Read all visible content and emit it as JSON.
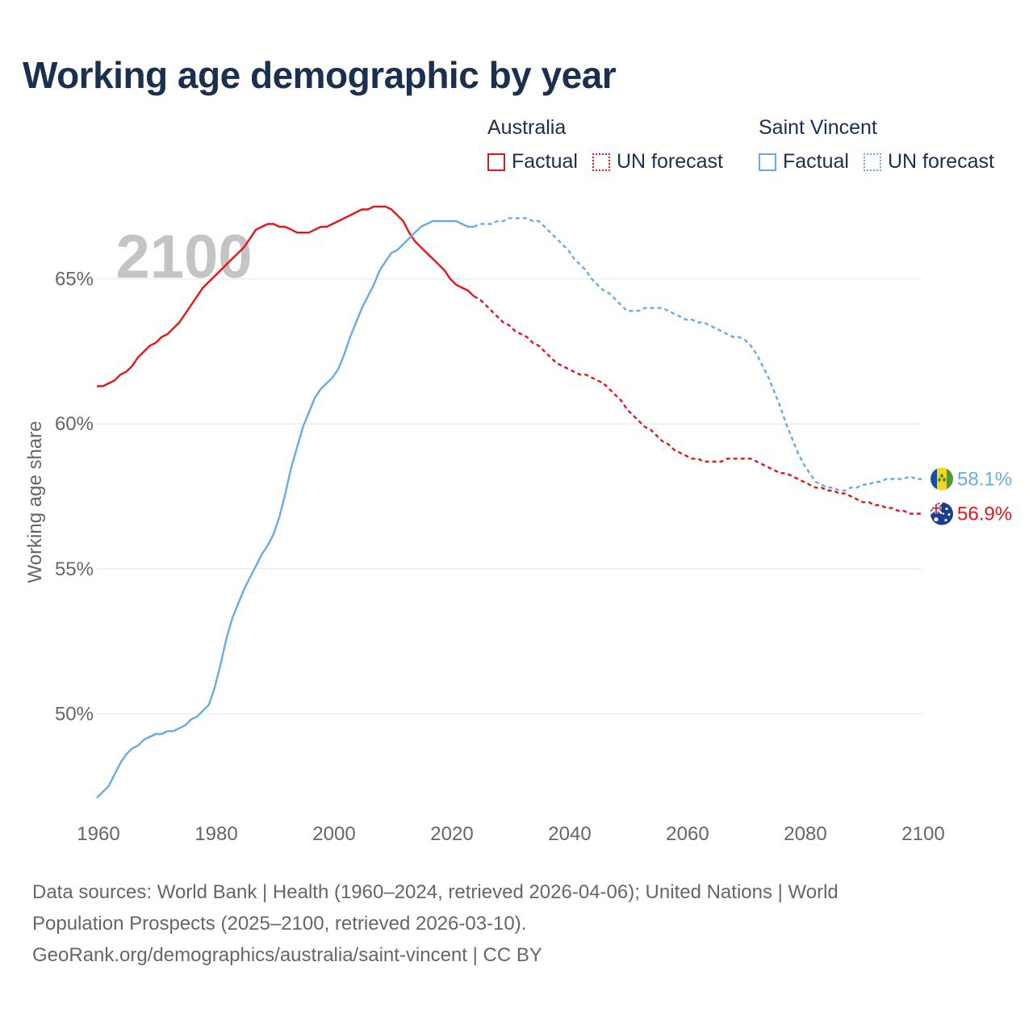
{
  "title": "Working age demographic by year",
  "legend": {
    "groups": [
      {
        "name": "Australia",
        "color": "#e8141c",
        "factual_label": "Factual",
        "forecast_label": "UN forecast"
      },
      {
        "name": "Saint Vincent",
        "color": "#6aaae6",
        "factual_label": "Factual",
        "forecast_label": "UN forecast"
      }
    ]
  },
  "footer": {
    "line1": "Data sources: World Bank | Health (1960–2024, retrieved 2026-04-06); United Nations | World",
    "line2": "Population Prospects (2025–2100, retrieved 2026-03-10).",
    "line3": "GeoRank.org/demographics/australia/saint-vincent | CC BY"
  },
  "chart_data": {
    "type": "line",
    "title": "Working age demographic by year",
    "xlabel": "",
    "ylabel": "Working age share",
    "xlim": [
      1960,
      2100
    ],
    "ylim": [
      46.5,
      68.5
    ],
    "x_ticks": [
      1960,
      1980,
      2000,
      2020,
      2040,
      2060,
      2080,
      2100
    ],
    "y_ticks": [
      50,
      55,
      60,
      65
    ],
    "y_tick_labels": [
      "50%",
      "55%",
      "60%",
      "65%"
    ],
    "year_watermark": "2100",
    "factual_end_year": 2024,
    "series": [
      {
        "name": "Australia",
        "color": "#e8141c",
        "end_label": "56.9%",
        "flag": "australia",
        "points": [
          [
            1960,
            61.3
          ],
          [
            1961,
            61.3
          ],
          [
            1962,
            61.4
          ],
          [
            1963,
            61.5
          ],
          [
            1964,
            61.7
          ],
          [
            1965,
            61.8
          ],
          [
            1966,
            62.0
          ],
          [
            1967,
            62.3
          ],
          [
            1968,
            62.5
          ],
          [
            1969,
            62.7
          ],
          [
            1970,
            62.8
          ],
          [
            1971,
            63.0
          ],
          [
            1972,
            63.1
          ],
          [
            1973,
            63.3
          ],
          [
            1974,
            63.5
          ],
          [
            1975,
            63.8
          ],
          [
            1976,
            64.1
          ],
          [
            1977,
            64.4
          ],
          [
            1978,
            64.7
          ],
          [
            1979,
            64.9
          ],
          [
            1980,
            65.1
          ],
          [
            1981,
            65.3
          ],
          [
            1982,
            65.5
          ],
          [
            1983,
            65.7
          ],
          [
            1984,
            65.9
          ],
          [
            1985,
            66.1
          ],
          [
            1986,
            66.4
          ],
          [
            1987,
            66.7
          ],
          [
            1988,
            66.8
          ],
          [
            1989,
            66.9
          ],
          [
            1990,
            66.9
          ],
          [
            1991,
            66.8
          ],
          [
            1992,
            66.8
          ],
          [
            1993,
            66.7
          ],
          [
            1994,
            66.6
          ],
          [
            1995,
            66.6
          ],
          [
            1996,
            66.6
          ],
          [
            1997,
            66.7
          ],
          [
            1998,
            66.8
          ],
          [
            1999,
            66.8
          ],
          [
            2000,
            66.9
          ],
          [
            2001,
            67.0
          ],
          [
            2002,
            67.1
          ],
          [
            2003,
            67.2
          ],
          [
            2004,
            67.3
          ],
          [
            2005,
            67.4
          ],
          [
            2006,
            67.4
          ],
          [
            2007,
            67.5
          ],
          [
            2008,
            67.5
          ],
          [
            2009,
            67.5
          ],
          [
            2010,
            67.4
          ],
          [
            2011,
            67.2
          ],
          [
            2012,
            67.0
          ],
          [
            2013,
            66.6
          ],
          [
            2014,
            66.3
          ],
          [
            2015,
            66.1
          ],
          [
            2016,
            65.9
          ],
          [
            2017,
            65.7
          ],
          [
            2018,
            65.5
          ],
          [
            2019,
            65.3
          ],
          [
            2020,
            65.0
          ],
          [
            2021,
            64.8
          ],
          [
            2022,
            64.7
          ],
          [
            2023,
            64.6
          ],
          [
            2024,
            64.4
          ],
          [
            2025,
            64.3
          ],
          [
            2026,
            64.1
          ],
          [
            2027,
            63.9
          ],
          [
            2028,
            63.7
          ],
          [
            2029,
            63.5
          ],
          [
            2030,
            63.4
          ],
          [
            2031,
            63.2
          ],
          [
            2032,
            63.1
          ],
          [
            2033,
            63.0
          ],
          [
            2034,
            62.8
          ],
          [
            2035,
            62.7
          ],
          [
            2036,
            62.5
          ],
          [
            2037,
            62.3
          ],
          [
            2038,
            62.1
          ],
          [
            2039,
            62.0
          ],
          [
            2040,
            61.9
          ],
          [
            2041,
            61.8
          ],
          [
            2042,
            61.7
          ],
          [
            2043,
            61.7
          ],
          [
            2044,
            61.6
          ],
          [
            2045,
            61.5
          ],
          [
            2046,
            61.4
          ],
          [
            2047,
            61.2
          ],
          [
            2048,
            61.0
          ],
          [
            2049,
            60.8
          ],
          [
            2050,
            60.5
          ],
          [
            2051,
            60.3
          ],
          [
            2052,
            60.1
          ],
          [
            2053,
            59.9
          ],
          [
            2054,
            59.8
          ],
          [
            2055,
            59.6
          ],
          [
            2056,
            59.4
          ],
          [
            2057,
            59.3
          ],
          [
            2058,
            59.1
          ],
          [
            2059,
            59.0
          ],
          [
            2060,
            58.9
          ],
          [
            2061,
            58.8
          ],
          [
            2062,
            58.8
          ],
          [
            2063,
            58.7
          ],
          [
            2064,
            58.7
          ],
          [
            2065,
            58.7
          ],
          [
            2066,
            58.7
          ],
          [
            2067,
            58.8
          ],
          [
            2068,
            58.8
          ],
          [
            2069,
            58.8
          ],
          [
            2070,
            58.8
          ],
          [
            2071,
            58.8
          ],
          [
            2072,
            58.7
          ],
          [
            2073,
            58.6
          ],
          [
            2074,
            58.5
          ],
          [
            2075,
            58.4
          ],
          [
            2076,
            58.3
          ],
          [
            2077,
            58.3
          ],
          [
            2078,
            58.2
          ],
          [
            2079,
            58.1
          ],
          [
            2080,
            58.0
          ],
          [
            2081,
            57.9
          ],
          [
            2082,
            57.8
          ],
          [
            2083,
            57.8
          ],
          [
            2084,
            57.7
          ],
          [
            2085,
            57.7
          ],
          [
            2086,
            57.6
          ],
          [
            2087,
            57.6
          ],
          [
            2088,
            57.5
          ],
          [
            2089,
            57.4
          ],
          [
            2090,
            57.3
          ],
          [
            2091,
            57.3
          ],
          [
            2092,
            57.2
          ],
          [
            2093,
            57.2
          ],
          [
            2094,
            57.1
          ],
          [
            2095,
            57.1
          ],
          [
            2096,
            57.0
          ],
          [
            2097,
            57.0
          ],
          [
            2098,
            56.9
          ],
          [
            2099,
            56.9
          ],
          [
            2100,
            56.9
          ]
        ]
      },
      {
        "name": "Saint Vincent",
        "color": "#6aaae6",
        "end_label": "58.1%",
        "flag": "saint-vincent",
        "points": [
          [
            1960,
            47.1
          ],
          [
            1961,
            47.3
          ],
          [
            1962,
            47.5
          ],
          [
            1963,
            47.9
          ],
          [
            1964,
            48.3
          ],
          [
            1965,
            48.6
          ],
          [
            1966,
            48.8
          ],
          [
            1967,
            48.9
          ],
          [
            1968,
            49.1
          ],
          [
            1969,
            49.2
          ],
          [
            1970,
            49.3
          ],
          [
            1971,
            49.3
          ],
          [
            1972,
            49.4
          ],
          [
            1973,
            49.4
          ],
          [
            1974,
            49.5
          ],
          [
            1975,
            49.6
          ],
          [
            1976,
            49.8
          ],
          [
            1977,
            49.9
          ],
          [
            1978,
            50.1
          ],
          [
            1979,
            50.3
          ],
          [
            1980,
            50.9
          ],
          [
            1981,
            51.7
          ],
          [
            1982,
            52.6
          ],
          [
            1983,
            53.3
          ],
          [
            1984,
            53.8
          ],
          [
            1985,
            54.3
          ],
          [
            1986,
            54.7
          ],
          [
            1987,
            55.1
          ],
          [
            1988,
            55.5
          ],
          [
            1989,
            55.8
          ],
          [
            1990,
            56.2
          ],
          [
            1991,
            56.8
          ],
          [
            1992,
            57.6
          ],
          [
            1993,
            58.5
          ],
          [
            1994,
            59.2
          ],
          [
            1995,
            59.9
          ],
          [
            1996,
            60.4
          ],
          [
            1997,
            60.9
          ],
          [
            1998,
            61.2
          ],
          [
            1999,
            61.4
          ],
          [
            2000,
            61.6
          ],
          [
            2001,
            61.9
          ],
          [
            2002,
            62.4
          ],
          [
            2003,
            63.0
          ],
          [
            2004,
            63.5
          ],
          [
            2005,
            64.0
          ],
          [
            2006,
            64.4
          ],
          [
            2007,
            64.8
          ],
          [
            2008,
            65.3
          ],
          [
            2009,
            65.6
          ],
          [
            2010,
            65.9
          ],
          [
            2011,
            66.0
          ],
          [
            2012,
            66.2
          ],
          [
            2013,
            66.4
          ],
          [
            2014,
            66.6
          ],
          [
            2015,
            66.8
          ],
          [
            2016,
            66.9
          ],
          [
            2017,
            67.0
          ],
          [
            2018,
            67.0
          ],
          [
            2019,
            67.0
          ],
          [
            2020,
            67.0
          ],
          [
            2021,
            67.0
          ],
          [
            2022,
            66.9
          ],
          [
            2023,
            66.8
          ],
          [
            2024,
            66.8
          ],
          [
            2025,
            66.9
          ],
          [
            2026,
            66.9
          ],
          [
            2027,
            66.9
          ],
          [
            2028,
            67.0
          ],
          [
            2029,
            67.0
          ],
          [
            2030,
            67.1
          ],
          [
            2031,
            67.1
          ],
          [
            2032,
            67.1
          ],
          [
            2033,
            67.1
          ],
          [
            2034,
            67.0
          ],
          [
            2035,
            67.0
          ],
          [
            2036,
            66.8
          ],
          [
            2037,
            66.6
          ],
          [
            2038,
            66.4
          ],
          [
            2039,
            66.2
          ],
          [
            2040,
            66.0
          ],
          [
            2041,
            65.7
          ],
          [
            2042,
            65.5
          ],
          [
            2043,
            65.3
          ],
          [
            2044,
            65.0
          ],
          [
            2045,
            64.8
          ],
          [
            2046,
            64.6
          ],
          [
            2047,
            64.5
          ],
          [
            2048,
            64.3
          ],
          [
            2049,
            64.1
          ],
          [
            2050,
            63.9
          ],
          [
            2051,
            63.9
          ],
          [
            2052,
            63.9
          ],
          [
            2053,
            64.0
          ],
          [
            2054,
            64.0
          ],
          [
            2055,
            64.0
          ],
          [
            2056,
            64.0
          ],
          [
            2057,
            63.9
          ],
          [
            2058,
            63.8
          ],
          [
            2059,
            63.7
          ],
          [
            2060,
            63.6
          ],
          [
            2061,
            63.6
          ],
          [
            2062,
            63.5
          ],
          [
            2063,
            63.5
          ],
          [
            2064,
            63.4
          ],
          [
            2065,
            63.3
          ],
          [
            2066,
            63.2
          ],
          [
            2067,
            63.1
          ],
          [
            2068,
            63.0
          ],
          [
            2069,
            63.0
          ],
          [
            2070,
            62.9
          ],
          [
            2071,
            62.7
          ],
          [
            2072,
            62.4
          ],
          [
            2073,
            62.0
          ],
          [
            2074,
            61.6
          ],
          [
            2075,
            61.1
          ],
          [
            2076,
            60.6
          ],
          [
            2077,
            60.0
          ],
          [
            2078,
            59.5
          ],
          [
            2079,
            59.0
          ],
          [
            2080,
            58.6
          ],
          [
            2081,
            58.3
          ],
          [
            2082,
            58.0
          ],
          [
            2083,
            57.9
          ],
          [
            2084,
            57.8
          ],
          [
            2085,
            57.8
          ],
          [
            2086,
            57.7
          ],
          [
            2087,
            57.7
          ],
          [
            2088,
            57.8
          ],
          [
            2089,
            57.8
          ],
          [
            2090,
            57.9
          ],
          [
            2091,
            57.9
          ],
          [
            2092,
            58.0
          ],
          [
            2093,
            58.0
          ],
          [
            2094,
            58.1
          ],
          [
            2095,
            58.1
          ],
          [
            2096,
            58.1
          ],
          [
            2097,
            58.1
          ],
          [
            2098,
            58.2
          ],
          [
            2099,
            58.1
          ],
          [
            2100,
            58.1
          ]
        ]
      }
    ]
  }
}
